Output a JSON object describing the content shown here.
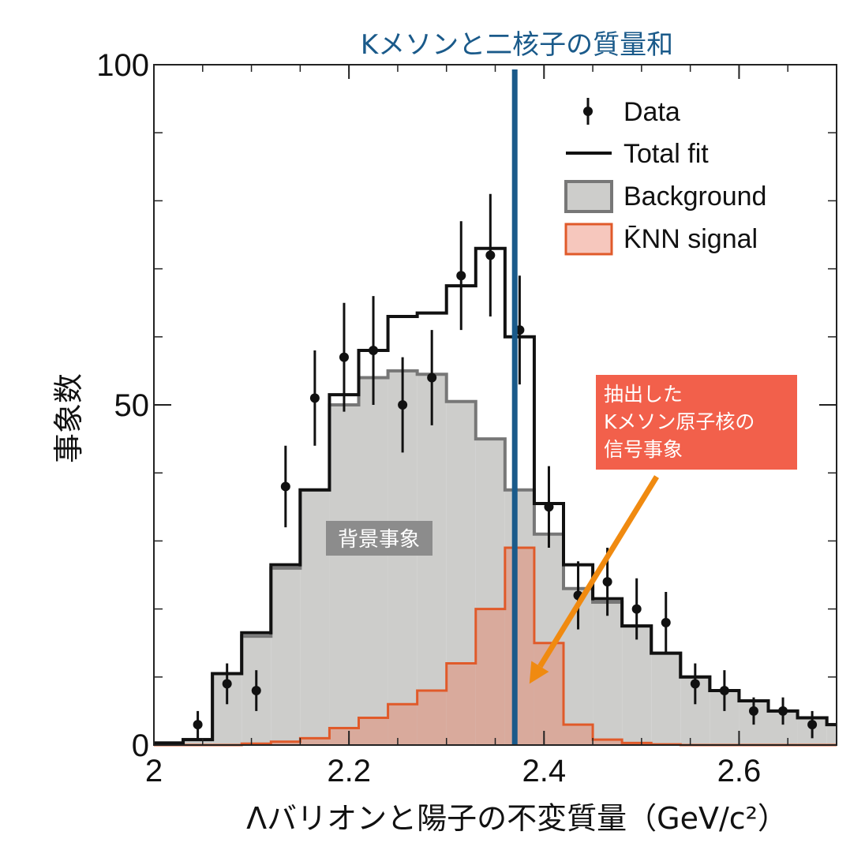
{
  "chart_data": {
    "type": "histogram",
    "title": "Kメソンと二核子の質量和",
    "xlabel": "Λバリオンと陽子の不変質量（GeV/c²）",
    "ylabel": "事象数",
    "xlim": [
      2.0,
      2.7
    ],
    "ylim": [
      0,
      100
    ],
    "x_ticks": [
      2,
      2.2,
      2.4,
      2.6
    ],
    "x_tick_labels": [
      "2",
      "2.2",
      "2.4",
      "2.6"
    ],
    "y_ticks": [
      0,
      50,
      100
    ],
    "y_tick_labels": [
      "0",
      "50",
      "100"
    ],
    "bin_edges": [
      2.0,
      2.03,
      2.06,
      2.09,
      2.12,
      2.15,
      2.18,
      2.21,
      2.24,
      2.27,
      2.3,
      2.33,
      2.36,
      2.39,
      2.42,
      2.45,
      2.48,
      2.51,
      2.54,
      2.57,
      2.6,
      2.63,
      2.66,
      2.69,
      2.7
    ],
    "series": [
      {
        "name": "Data",
        "style": "points-with-errorbars",
        "x": [
          2.045,
          2.075,
          2.105,
          2.135,
          2.165,
          2.195,
          2.225,
          2.255,
          2.285,
          2.315,
          2.345,
          2.375,
          2.405,
          2.435,
          2.465,
          2.495,
          2.525,
          2.555,
          2.585,
          2.615,
          2.645,
          2.675
        ],
        "y": [
          3,
          9,
          8,
          38,
          51,
          57,
          58,
          50,
          54,
          69,
          72,
          61,
          35,
          22,
          24,
          20,
          18,
          9,
          8,
          5,
          5,
          3
        ],
        "yerr": [
          2,
          3,
          3,
          6,
          7,
          8,
          8,
          7,
          7,
          8,
          9,
          8,
          6,
          5,
          5,
          4.5,
          4.5,
          3,
          3,
          2,
          2,
          2
        ]
      },
      {
        "name": "Total fit",
        "style": "step-line",
        "values": [
          0.3,
          0.8,
          10.5,
          16.5,
          26.5,
          37.5,
          51.5,
          58,
          63,
          63.5,
          67.5,
          73,
          60,
          35.5,
          26.5,
          21.5,
          17.5,
          13.5,
          10,
          8,
          6.5,
          5,
          4,
          3
        ]
      },
      {
        "name": "Background",
        "style": "step-fill",
        "values": [
          0.3,
          0.8,
          10.5,
          16,
          26,
          37.5,
          50,
          54,
          55,
          54.5,
          50.5,
          45,
          37.5,
          31,
          23,
          21,
          17.5,
          13.5,
          10,
          8,
          6.5,
          5,
          4,
          3
        ]
      },
      {
        "name": "K̄NN signal",
        "style": "step-fill",
        "values": [
          0,
          0,
          0,
          0.2,
          0.5,
          1,
          2.5,
          4,
          6,
          8,
          12,
          20,
          29,
          15,
          3,
          0.8,
          0.3,
          0.1,
          0,
          0,
          0,
          0,
          0,
          0
        ]
      }
    ],
    "vertical_line": {
      "x": 2.37
    },
    "legend": {
      "placement": "top-right",
      "entries": [
        "Data",
        "Total fit",
        "Background",
        "K̄NN signal"
      ]
    },
    "annotations": {
      "background_label": "背景事象",
      "signal_box_lines": [
        "抽出した",
        "Kメソン原子核の",
        "信号事象"
      ],
      "arrow_target": {
        "x": 2.385,
        "y": 9
      }
    },
    "colors": {
      "vertical_line": "#1a5a8a",
      "title": "#1a5a8a",
      "data": "#111111",
      "total_fit": "#111111",
      "background_fill": "#cdcdcb",
      "background_line": "#777777",
      "signal_fill": "#d9aa9c",
      "signal_line": "#e05a2a",
      "signal_box": "#f2604b",
      "arrow": "#f08a10",
      "background_label_box": "#8c8c8c"
    }
  }
}
